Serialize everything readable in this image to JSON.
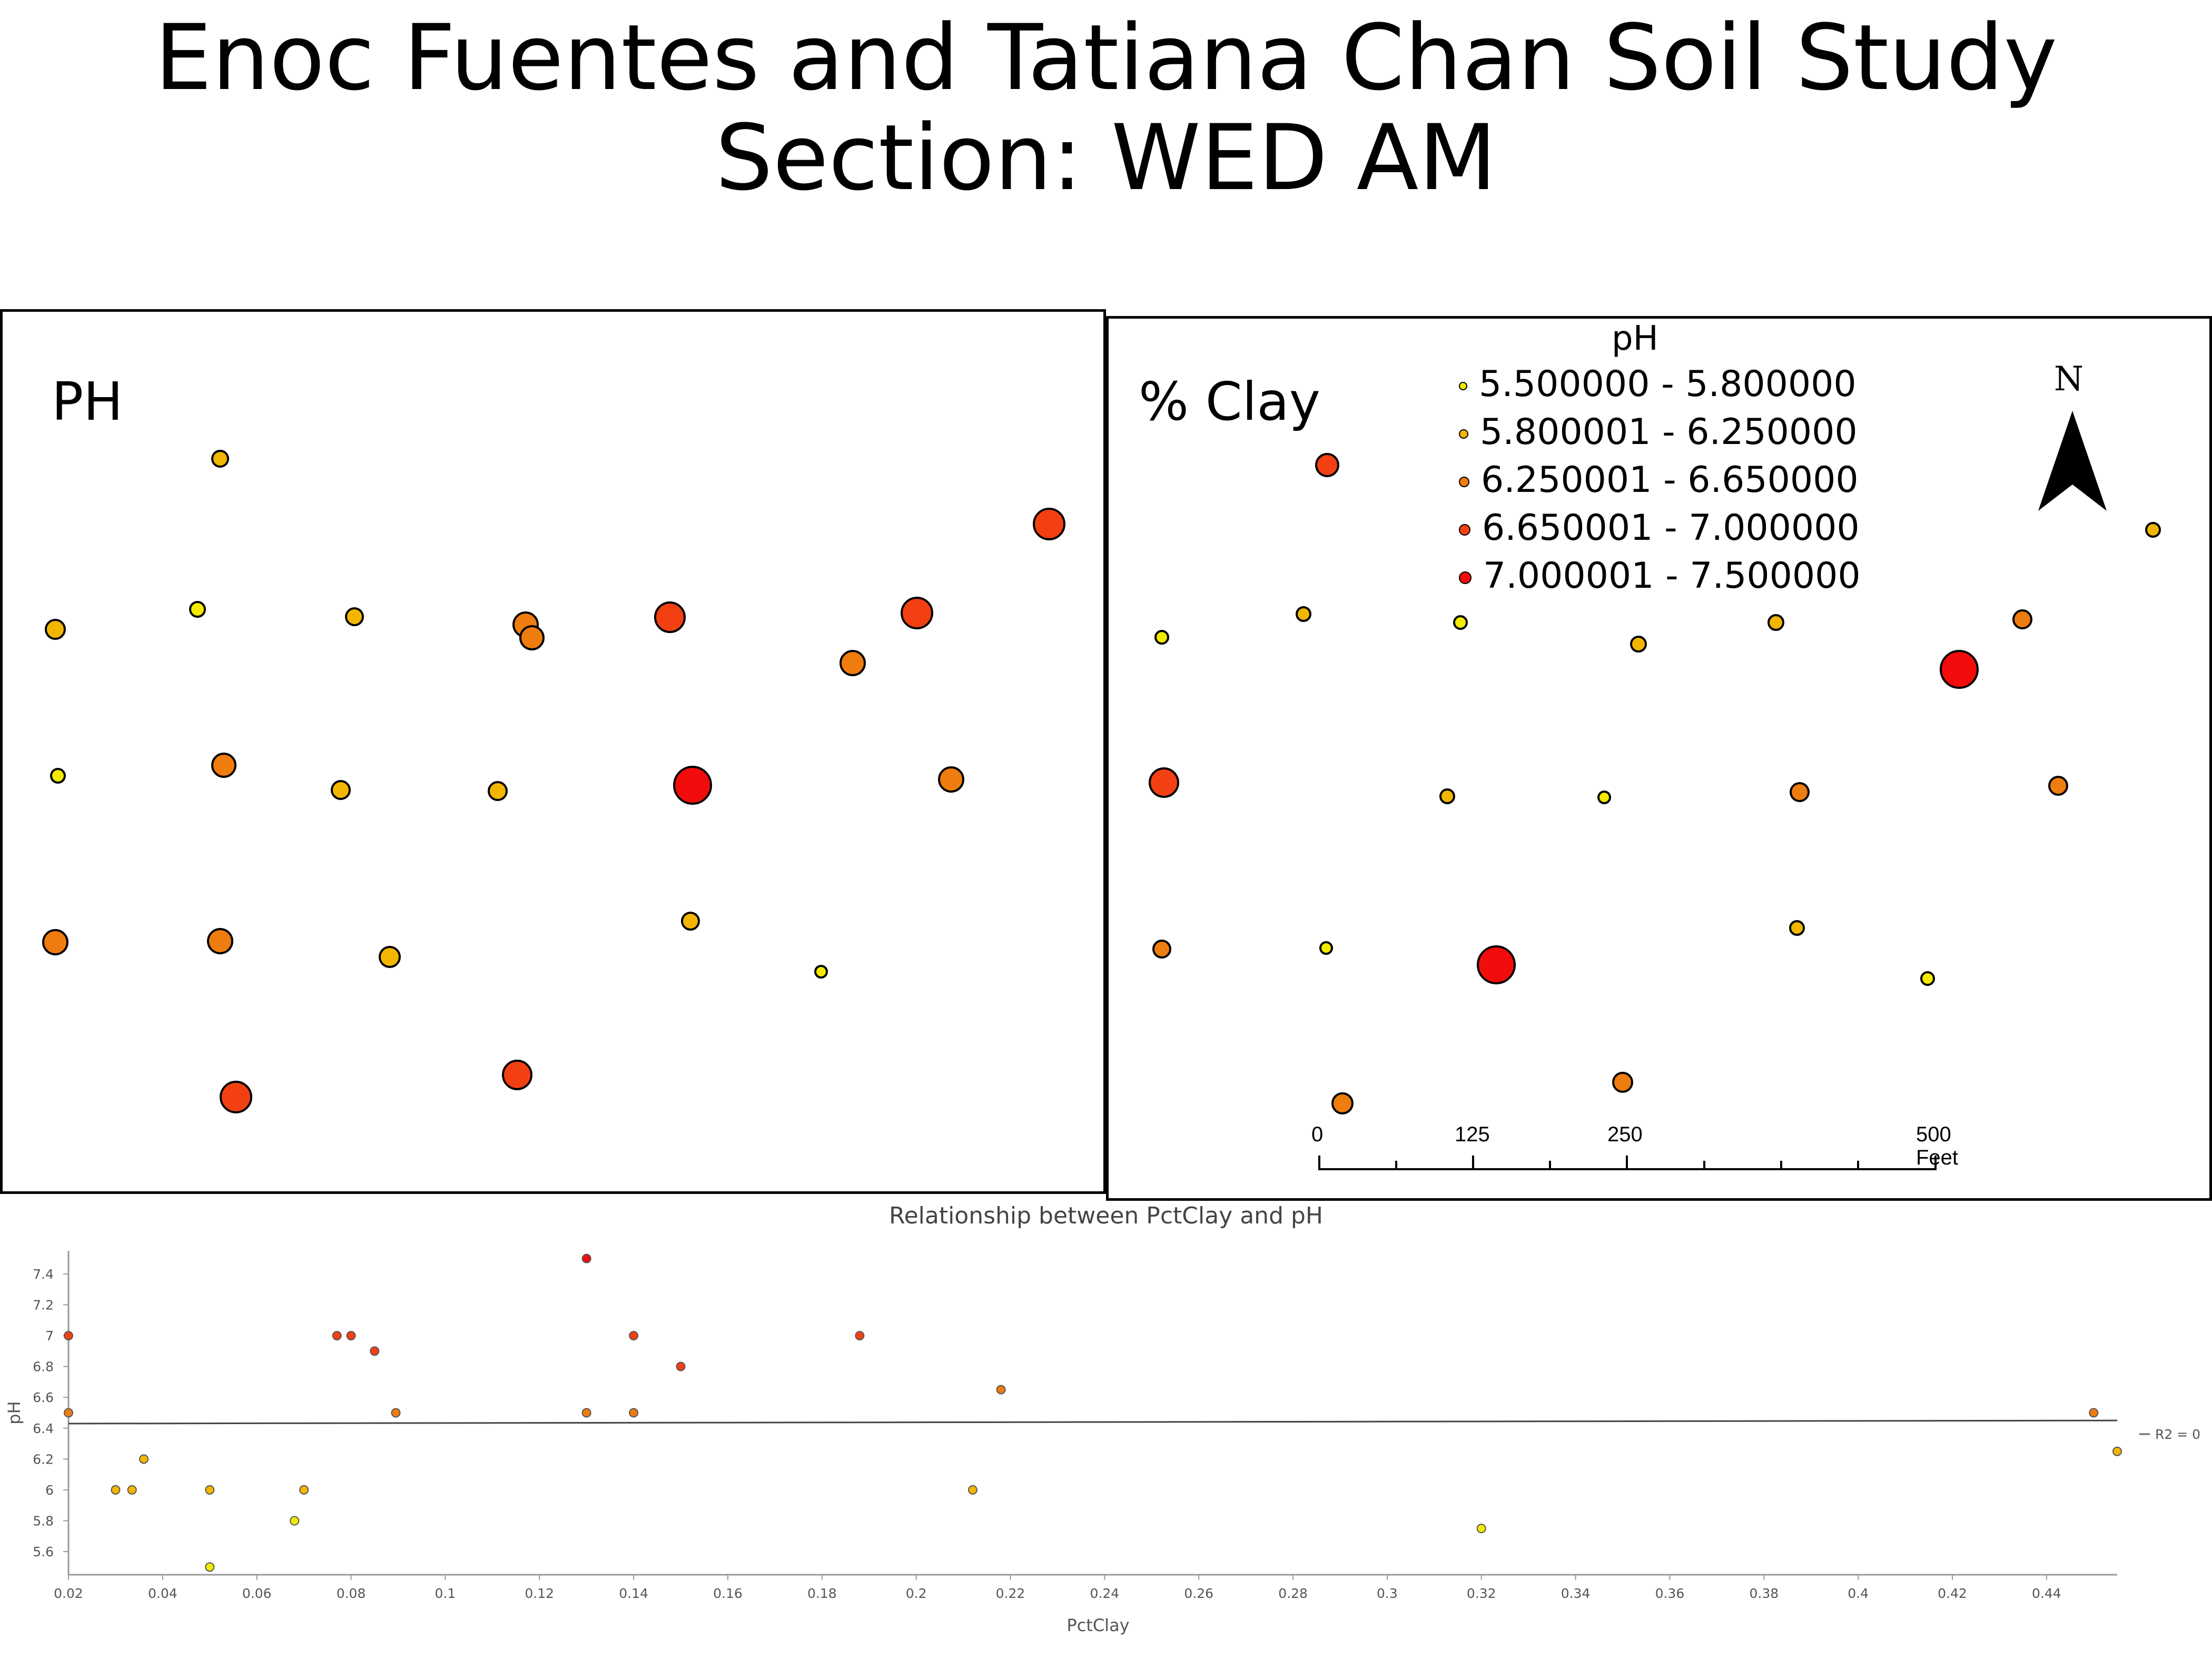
{
  "page_title": "Enoc Fuentes and Tatiana Chan Soil Study Section: WED AM",
  "ph_map": {
    "label": "PH"
  },
  "clay_map": {
    "label": "% Clay"
  },
  "legend": {
    "title": "pH",
    "classes": [
      {
        "label": "5.500000 - 5.800000",
        "color": "#f2ea00"
      },
      {
        "label": "5.800001 - 6.250000",
        "color": "#f2b600"
      },
      {
        "label": "6.250001 - 6.650000",
        "color": "#ef7c0e"
      },
      {
        "label": "6.650001 - 7.000000",
        "color": "#f24013"
      },
      {
        "label": "7.000001 - 7.500000",
        "color": "#f20c0c"
      }
    ]
  },
  "north_arrow": {
    "letter": "N",
    "icon": "north-arrow-icon"
  },
  "scale_bar": {
    "labels": [
      "0",
      "125",
      "250",
      "500 Feet"
    ]
  },
  "chart_data": {
    "type": "scatter",
    "title": "Relationship between PctClay and pH",
    "xlabel": "PctClay",
    "ylabel": "pH",
    "xlim": [
      0.02,
      0.455
    ],
    "ylim": [
      5.5,
      7.5
    ],
    "xticks": [
      "0.02",
      "0.04",
      "0.06",
      "0.08",
      "0.1",
      "0.12",
      "0.14",
      "0.16",
      "0.18",
      "0.2",
      "0.22",
      "0.24",
      "0.26",
      "0.28",
      "0.3",
      "0.32",
      "0.34",
      "0.36",
      "0.38",
      "0.4",
      "0.42",
      "0.44"
    ],
    "yticks": [
      "5.6",
      "5.8",
      "6",
      "6.2",
      "6.4",
      "6.6",
      "6.8",
      "7",
      "7.2",
      "7.4"
    ],
    "trendline": {
      "label": "R2 = 0",
      "start": [
        0.02,
        6.43
      ],
      "end": [
        0.455,
        6.45
      ]
    },
    "points": [
      {
        "x": 0.02,
        "y": 7.0
      },
      {
        "x": 0.02,
        "y": 6.5
      },
      {
        "x": 0.03,
        "y": 6.0
      },
      {
        "x": 0.0335,
        "y": 6.0
      },
      {
        "x": 0.036,
        "y": 6.2
      },
      {
        "x": 0.05,
        "y": 6.0
      },
      {
        "x": 0.05,
        "y": 5.5
      },
      {
        "x": 0.068,
        "y": 5.8
      },
      {
        "x": 0.07,
        "y": 6.0
      },
      {
        "x": 0.077,
        "y": 7.0
      },
      {
        "x": 0.08,
        "y": 7.0
      },
      {
        "x": 0.085,
        "y": 6.9
      },
      {
        "x": 0.0895,
        "y": 6.5
      },
      {
        "x": 0.13,
        "y": 7.5
      },
      {
        "x": 0.13,
        "y": 6.5
      },
      {
        "x": 0.14,
        "y": 7.0
      },
      {
        "x": 0.14,
        "y": 6.5
      },
      {
        "x": 0.15,
        "y": 6.8
      },
      {
        "x": 0.188,
        "y": 7.0
      },
      {
        "x": 0.212,
        "y": 6.0
      },
      {
        "x": 0.218,
        "y": 6.65
      },
      {
        "x": 0.32,
        "y": 5.75
      },
      {
        "x": 0.45,
        "y": 6.5
      },
      {
        "x": 0.455,
        "y": 6.25
      }
    ]
  }
}
